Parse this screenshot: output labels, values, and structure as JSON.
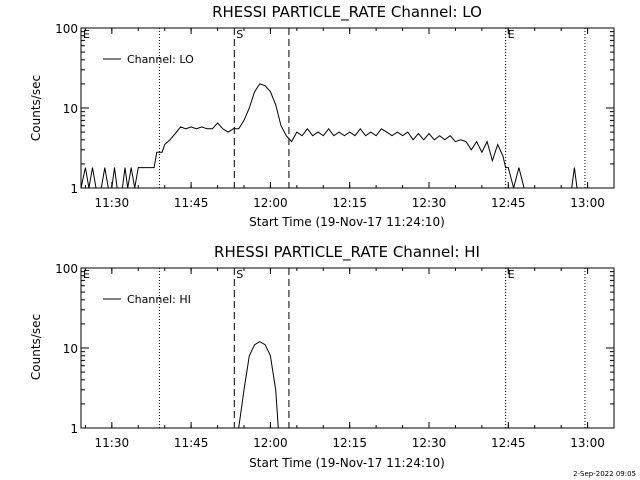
{
  "footer_date": "2-Sep-2022 09:05",
  "chart_data": [
    {
      "type": "line",
      "title": "RHESSI PARTICLE_RATE Channel: LO",
      "xlabel": "Start Time (19-Nov-17 11:24:10)",
      "ylabel": "Counts/sec",
      "y_scale": "log",
      "ylim": [
        1,
        100
      ],
      "xlim": [
        "11:24:10",
        "13:05:00"
      ],
      "x_ticks": [
        "11:30",
        "11:45",
        "12:00",
        "12:15",
        "12:30",
        "12:45",
        "13:00"
      ],
      "y_ticks": [
        "1",
        "10",
        "100"
      ],
      "legend": "top-left",
      "legend_entries": [
        "Channel: LO"
      ],
      "markers": [
        {
          "time": "11:24:10",
          "label": "E",
          "style": "dotted"
        },
        {
          "time": "11:39:00",
          "label": "",
          "style": "dotted"
        },
        {
          "time": "11:53:10",
          "label": "S",
          "style": "dashed"
        },
        {
          "time": "12:03:30",
          "label": "",
          "style": "dashed"
        },
        {
          "time": "12:44:30",
          "label": "E",
          "style": "dotted"
        },
        {
          "time": "12:59:30",
          "label": "",
          "style": "dotted"
        }
      ],
      "series": [
        {
          "name": "Channel: LO",
          "points": [
            [
              "11:24:10",
              1
            ],
            [
              "11:25:00",
              1.8
            ],
            [
              "11:25:40",
              1
            ],
            [
              "11:26:20",
              1.8
            ],
            [
              "11:27:00",
              1
            ],
            [
              "11:28:00",
              1
            ],
            [
              "11:28:40",
              1.8
            ],
            [
              "11:29:20",
              1
            ],
            [
              "11:30:00",
              1
            ],
            [
              "11:30:30",
              1.8
            ],
            [
              "11:31:00",
              1
            ],
            [
              "11:32:00",
              1
            ],
            [
              "11:32:30",
              1.8
            ],
            [
              "11:33:00",
              1
            ],
            [
              "11:33:40",
              1.8
            ],
            [
              "11:34:20",
              1
            ],
            [
              "11:35:00",
              1.8
            ],
            [
              "11:36:00",
              1.8
            ],
            [
              "11:37:00",
              1.8
            ],
            [
              "11:38:00",
              1.8
            ],
            [
              "11:38:30",
              2.8
            ],
            [
              "11:39:30",
              2.8
            ],
            [
              "11:40:00",
              3.5
            ],
            [
              "11:41:00",
              4.0
            ],
            [
              "11:42:00",
              4.8
            ],
            [
              "11:43:00",
              5.8
            ],
            [
              "11:44:00",
              5.5
            ],
            [
              "11:45:00",
              5.8
            ],
            [
              "11:46:00",
              5.5
            ],
            [
              "11:47:00",
              5.8
            ],
            [
              "11:48:00",
              5.5
            ],
            [
              "11:49:00",
              5.5
            ],
            [
              "11:50:00",
              6.5
            ],
            [
              "11:51:00",
              5.5
            ],
            [
              "11:52:00",
              5.0
            ],
            [
              "11:53:00",
              5.5
            ],
            [
              "11:54:00",
              5.5
            ],
            [
              "11:55:00",
              7.0
            ],
            [
              "11:56:00",
              10.0
            ],
            [
              "11:57:00",
              16.0
            ],
            [
              "11:58:00",
              20.0
            ],
            [
              "11:59:00",
              19.0
            ],
            [
              "12:00:00",
              16.0
            ],
            [
              "12:01:00",
              11.0
            ],
            [
              "12:02:00",
              6.0
            ],
            [
              "12:03:00",
              4.5
            ],
            [
              "12:04:00",
              3.8
            ],
            [
              "12:05:00",
              5.0
            ],
            [
              "12:06:00",
              4.5
            ],
            [
              "12:07:00",
              5.5
            ],
            [
              "12:08:00",
              4.5
            ],
            [
              "12:09:00",
              5.0
            ],
            [
              "12:10:00",
              4.5
            ],
            [
              "12:11:00",
              5.5
            ],
            [
              "12:12:00",
              4.5
            ],
            [
              "12:13:00",
              5.0
            ],
            [
              "12:14:00",
              4.5
            ],
            [
              "12:15:00",
              5.0
            ],
            [
              "12:16:00",
              4.5
            ],
            [
              "12:17:00",
              5.5
            ],
            [
              "12:18:00",
              4.5
            ],
            [
              "12:19:00",
              5.0
            ],
            [
              "12:20:00",
              4.5
            ],
            [
              "12:21:00",
              5.5
            ],
            [
              "12:22:00",
              5.0
            ],
            [
              "12:23:00",
              4.5
            ],
            [
              "12:24:00",
              5.0
            ],
            [
              "12:25:00",
              4.5
            ],
            [
              "12:26:00",
              5.0
            ],
            [
              "12:27:00",
              4.0
            ],
            [
              "12:28:00",
              4.8
            ],
            [
              "12:29:00",
              4.0
            ],
            [
              "12:30:00",
              4.8
            ],
            [
              "12:31:00",
              4.0
            ],
            [
              "12:32:00",
              4.5
            ],
            [
              "12:33:00",
              4.0
            ],
            [
              "12:34:00",
              4.5
            ],
            [
              "12:35:00",
              3.8
            ],
            [
              "12:36:00",
              4.0
            ],
            [
              "12:37:00",
              3.8
            ],
            [
              "12:38:00",
              3.0
            ],
            [
              "12:39:00",
              3.8
            ],
            [
              "12:40:00",
              2.8
            ],
            [
              "12:41:00",
              3.8
            ],
            [
              "12:42:00",
              2.2
            ],
            [
              "12:43:00",
              3.5
            ],
            [
              "12:44:00",
              2.5
            ],
            [
              "12:44:30",
              1.8
            ],
            [
              "12:45:00",
              1.8
            ],
            [
              "12:46:00",
              1.0
            ],
            [
              "12:47:00",
              1.8
            ],
            [
              "12:48:00",
              1.0
            ],
            [
              "12:57:00",
              1.0
            ],
            [
              "12:57:30",
              1.8
            ],
            [
              "12:58:00",
              1.0
            ]
          ]
        }
      ]
    },
    {
      "type": "line",
      "title": "RHESSI PARTICLE_RATE Channel: HI",
      "xlabel": "Start Time (19-Nov-17 11:24:10)",
      "ylabel": "Counts/sec",
      "y_scale": "log",
      "ylim": [
        1,
        100
      ],
      "xlim": [
        "11:24:10",
        "13:05:00"
      ],
      "x_ticks": [
        "11:30",
        "11:45",
        "12:00",
        "12:15",
        "12:30",
        "12:45",
        "13:00"
      ],
      "y_ticks": [
        "1",
        "10",
        "100"
      ],
      "legend": "top-left",
      "legend_entries": [
        "Channel: HI"
      ],
      "markers": [
        {
          "time": "11:24:10",
          "label": "E",
          "style": "dotted"
        },
        {
          "time": "11:39:00",
          "label": "",
          "style": "dotted"
        },
        {
          "time": "11:53:10",
          "label": "S",
          "style": "dashed"
        },
        {
          "time": "12:03:30",
          "label": "",
          "style": "dashed"
        },
        {
          "time": "12:44:30",
          "label": "E",
          "style": "dotted"
        },
        {
          "time": "12:59:30",
          "label": "",
          "style": "dotted"
        }
      ],
      "series": [
        {
          "name": "Channel: HI",
          "points": [
            [
              "11:54:00",
              1.0
            ],
            [
              "11:55:00",
              3.0
            ],
            [
              "11:56:00",
              8.0
            ],
            [
              "11:57:00",
              11.0
            ],
            [
              "11:58:00",
              12.0
            ],
            [
              "11:59:00",
              11.0
            ],
            [
              "12:00:00",
              8.0
            ],
            [
              "12:01:00",
              3.0
            ],
            [
              "12:01:30",
              1.0
            ]
          ]
        }
      ]
    }
  ]
}
